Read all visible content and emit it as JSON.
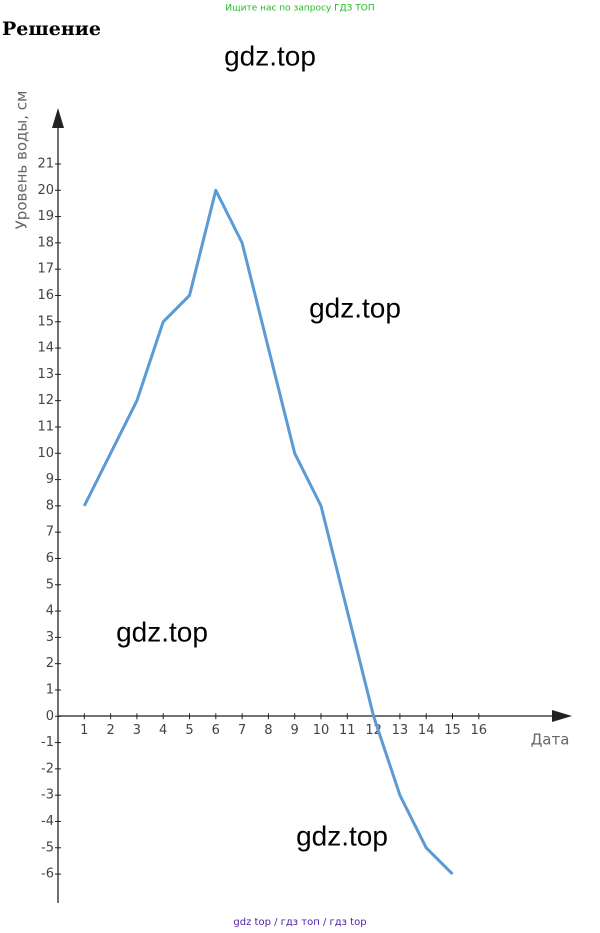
{
  "header": {
    "notice": "Ищите нас по запросу ГДЗ ТОП",
    "title": "Решение"
  },
  "watermarks": [
    "gdz.top",
    "gdz.top",
    "gdz.top",
    "gdz.top"
  ],
  "chart_data": {
    "type": "line",
    "y_label": "Уровень воды, см",
    "x_label": "Дата",
    "x": [
      1,
      2,
      3,
      4,
      5,
      6,
      7,
      8,
      9,
      10,
      11,
      12,
      13,
      14,
      15
    ],
    "series": [
      {
        "name": "Уровень воды",
        "color": "#5b9bd5",
        "values": [
          8,
          10,
          12,
          15,
          16,
          20,
          18,
          14,
          10,
          8,
          4,
          0,
          -3,
          -5,
          -6
        ]
      }
    ],
    "xlim": [
      0,
      18.7
    ],
    "ylim": [
      -7.1,
      23
    ],
    "xticks": [
      1,
      2,
      3,
      4,
      5,
      6,
      7,
      8,
      9,
      10,
      11,
      12,
      13,
      14,
      15,
      16
    ],
    "yticks": [
      -6,
      -5,
      -4,
      -3,
      -2,
      -1,
      0,
      1,
      2,
      3,
      4,
      5,
      6,
      7,
      8,
      9,
      10,
      11,
      12,
      13,
      14,
      15,
      16,
      17,
      18,
      19,
      20,
      21
    ],
    "grid": false
  },
  "footer": {
    "links": "gdz top / гдз топ / гдз top"
  }
}
